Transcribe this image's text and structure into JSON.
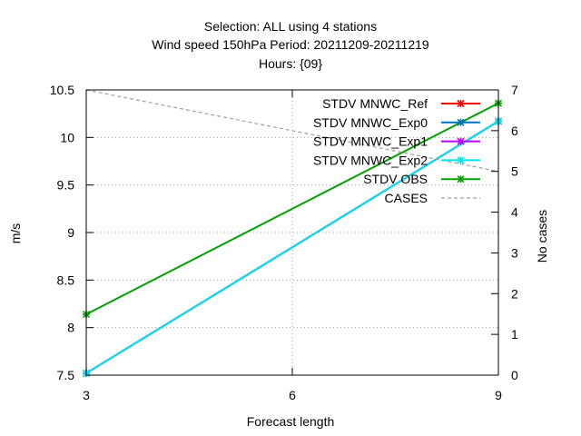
{
  "chart_data": {
    "type": "line",
    "title_lines": [
      "Selection: ALL using     4 stations",
      "Wind speed 150hPa   Period: 20211209-20211219",
      "Hours: {09}"
    ],
    "xlabel": "Forecast length",
    "ylabel": "m/s",
    "y2label": "No cases",
    "x": [
      3,
      9
    ],
    "xticks": [
      3,
      6,
      9
    ],
    "xlim": [
      3,
      9
    ],
    "ylim": [
      7.5,
      10.5
    ],
    "yticks": [
      "7.5",
      "8",
      "8.5",
      "9",
      "9.5",
      "10",
      "10.5"
    ],
    "y2lim": [
      0,
      7
    ],
    "y2ticks": [
      "0",
      "1",
      "2",
      "3",
      "4",
      "5",
      "6",
      "7"
    ],
    "grid": true,
    "legend_position": "top-right",
    "series": [
      {
        "name": "STDV MNWC_Ref",
        "axis": "y",
        "values": [
          7.52,
          10.17
        ],
        "color": "#ff0000",
        "marker": "x"
      },
      {
        "name": "STDV MNWC_Exp0",
        "axis": "y",
        "values": [
          7.52,
          10.17
        ],
        "color": "#0072bd",
        "marker": "x"
      },
      {
        "name": "STDV MNWC_Exp1",
        "axis": "y",
        "values": [
          7.52,
          10.17
        ],
        "color": "#c000ff",
        "marker": "x"
      },
      {
        "name": "STDV MNWC_Exp2",
        "axis": "y",
        "values": [
          7.52,
          10.17
        ],
        "color": "#00e5ee",
        "marker": "x"
      },
      {
        "name": "STDV OBS",
        "axis": "y",
        "values": [
          8.14,
          10.36
        ],
        "color": "#00a000",
        "marker": "x"
      },
      {
        "name": "CASES",
        "axis": "y2",
        "values": [
          7,
          5
        ],
        "color": "#a0a0a0",
        "marker": "none",
        "dash": true
      }
    ]
  }
}
